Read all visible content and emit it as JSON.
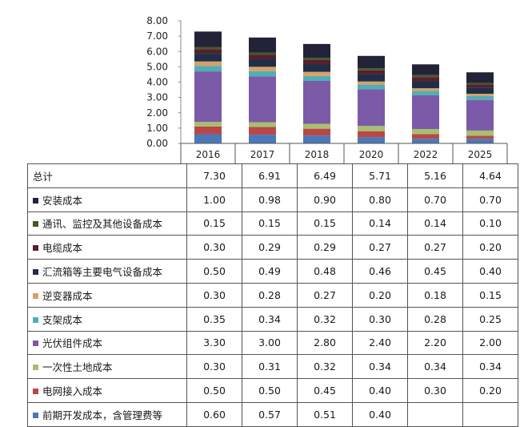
{
  "chart_data": {
    "type": "bar",
    "stacked": true,
    "categories": [
      "2016",
      "2017",
      "2018",
      "2020",
      "2022",
      "2025"
    ],
    "ylim": [
      0,
      8
    ],
    "yticks": [
      "0.00",
      "1.00",
      "2.00",
      "3.00",
      "4.00",
      "5.00",
      "6.00",
      "7.00",
      "8.00"
    ],
    "total": {
      "name": "总计",
      "values": [
        "7.30",
        "6.91",
        "6.49",
        "5.71",
        "5.16",
        "4.64"
      ]
    },
    "series": [
      {
        "name": "安装成本",
        "color": "#222238",
        "values": [
          1.0,
          0.98,
          0.9,
          0.8,
          0.7,
          0.7
        ],
        "labels": [
          "1.00",
          "0.98",
          "0.90",
          "0.80",
          "0.70",
          "0.70"
        ]
      },
      {
        "name": "通讯、监控及其他设备成本",
        "color": "#3f5a2a",
        "values": [
          0.15,
          0.15,
          0.15,
          0.14,
          0.14,
          0.1
        ],
        "labels": [
          "0.15",
          "0.15",
          "0.15",
          "0.14",
          "0.14",
          "0.10"
        ]
      },
      {
        "name": "电缆成本",
        "color": "#5a1e2e",
        "values": [
          0.3,
          0.29,
          0.29,
          0.27,
          0.27,
          0.2
        ],
        "labels": [
          "0.30",
          "0.29",
          "0.29",
          "0.27",
          "0.27",
          "0.20"
        ]
      },
      {
        "name": "汇流箱等主要电气设备成本",
        "color": "#1e2e48",
        "values": [
          0.5,
          0.49,
          0.48,
          0.46,
          0.45,
          0.4
        ],
        "labels": [
          "0.50",
          "0.49",
          "0.48",
          "0.46",
          "0.45",
          "0.40"
        ]
      },
      {
        "name": "逆变器成本",
        "color": "#d9a066",
        "values": [
          0.3,
          0.28,
          0.27,
          0.2,
          0.18,
          0.15
        ],
        "labels": [
          "0.30",
          "0.28",
          "0.27",
          "0.20",
          "0.18",
          "0.15"
        ]
      },
      {
        "name": "支架成本",
        "color": "#4fb0b4",
        "values": [
          0.35,
          0.34,
          0.32,
          0.3,
          0.28,
          0.25
        ],
        "labels": [
          "0.35",
          "0.34",
          "0.32",
          "0.30",
          "0.28",
          "0.25"
        ]
      },
      {
        "name": "光伏组件成本",
        "color": "#7b5aa8",
        "values": [
          3.3,
          3.0,
          2.8,
          2.4,
          2.2,
          2.0
        ],
        "labels": [
          "3.30",
          "3.00",
          "2.80",
          "2.40",
          "2.20",
          "2.00"
        ]
      },
      {
        "name": "一次性土地成本",
        "color": "#a8bf70",
        "values": [
          0.3,
          0.31,
          0.32,
          0.34,
          0.34,
          0.34
        ],
        "labels": [
          "0.30",
          "0.31",
          "0.32",
          "0.34",
          "0.34",
          "0.34"
        ]
      },
      {
        "name": "电网接入成本",
        "color": "#b84848",
        "values": [
          0.5,
          0.5,
          0.45,
          0.4,
          0.3,
          0.2
        ],
        "labels": [
          "0.50",
          "0.50",
          "0.45",
          "0.40",
          "0.30",
          "0.20"
        ]
      },
      {
        "name": "前期开发成本，含管理费等",
        "color": "#4a78b8",
        "values": [
          0.6,
          0.57,
          0.51,
          0.4,
          0.3,
          0.3
        ],
        "labels": [
          "0.60",
          "0.57",
          "0.51",
          "0.40",
          "",
          ""
        ]
      }
    ]
  }
}
